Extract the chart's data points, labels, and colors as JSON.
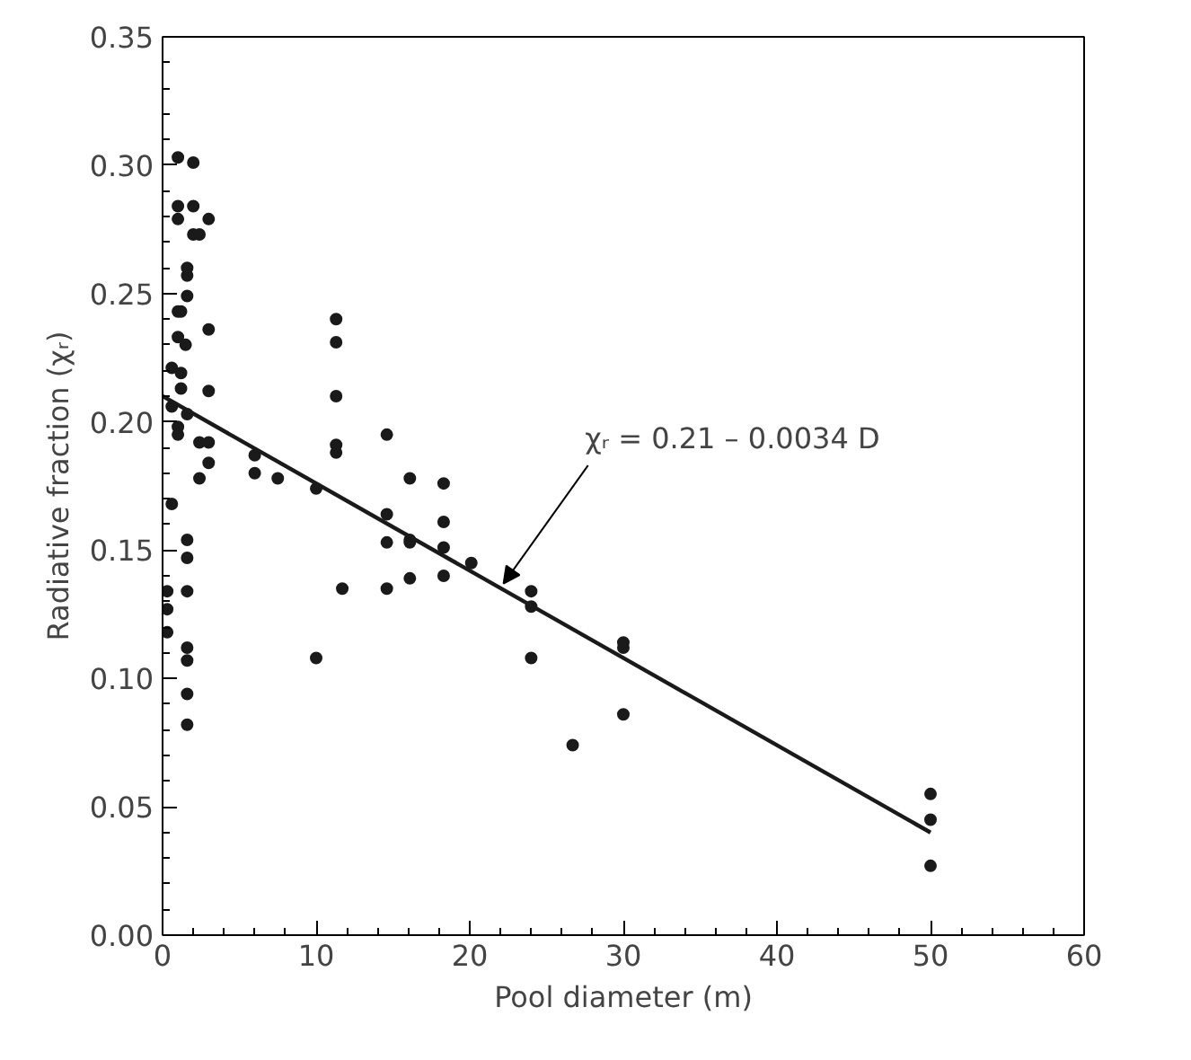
{
  "chart_data": {
    "type": "scatter",
    "xlabel": "Pool diameter (m)",
    "ylabel": "Radiative fraction (χᵣ)",
    "xlim": [
      0,
      60
    ],
    "ylim": [
      0,
      0.35
    ],
    "xticks": [
      0,
      10,
      20,
      30,
      40,
      50,
      60
    ],
    "yticks": [
      {
        "value": 0,
        "label": "0.00"
      },
      0.05,
      {
        "value": 0.1,
        "label": "0.10"
      },
      0.15,
      {
        "value": 0.2,
        "label": "0.20"
      },
      0.25,
      {
        "value": 0.3,
        "label": "0.30"
      },
      0.35
    ],
    "grid": false,
    "marker": "circle",
    "series": [
      {
        "color": "#1a1a1a",
        "x": [
          1.0,
          2.0,
          1.0,
          2.0,
          1.0,
          3.0,
          2.0,
          2.4,
          1.6,
          1.6,
          1.6,
          1.0,
          1.2,
          3.0,
          1.0,
          1.5,
          0.6,
          1.2,
          1.2,
          3.0,
          0.6,
          1.6,
          1.0,
          1.0,
          2.4,
          3.0,
          3.0,
          2.4,
          0.6,
          1.6,
          1.6,
          0.3,
          1.6,
          0.3,
          0.3,
          1.6,
          1.6,
          1.6,
          1.6,
          6.0,
          6.0,
          7.5,
          10.0,
          10.0,
          11.3,
          11.3,
          11.3,
          11.3,
          11.3,
          11.7,
          14.6,
          14.6,
          14.6,
          14.6,
          16.1,
          16.1,
          16.1,
          16.1,
          18.3,
          18.3,
          18.3,
          18.3,
          20.1,
          24.0,
          24.0,
          24.0,
          26.7,
          30.0,
          30.0,
          30.0,
          50.0,
          50.0,
          50.0
        ],
        "values": [
          0.303,
          0.301,
          0.284,
          0.284,
          0.279,
          0.279,
          0.273,
          0.273,
          0.26,
          0.257,
          0.249,
          0.243,
          0.243,
          0.236,
          0.233,
          0.23,
          0.221,
          0.219,
          0.213,
          0.212,
          0.206,
          0.203,
          0.198,
          0.195,
          0.192,
          0.192,
          0.184,
          0.178,
          0.168,
          0.154,
          0.147,
          0.134,
          0.134,
          0.127,
          0.118,
          0.112,
          0.107,
          0.094,
          0.082,
          0.187,
          0.18,
          0.178,
          0.174,
          0.108,
          0.24,
          0.231,
          0.21,
          0.191,
          0.188,
          0.135,
          0.195,
          0.164,
          0.153,
          0.135,
          0.178,
          0.154,
          0.153,
          0.139,
          0.176,
          0.161,
          0.151,
          0.14,
          0.145,
          0.134,
          0.128,
          0.108,
          0.074,
          0.114,
          0.112,
          0.086,
          0.055,
          0.045,
          0.027
        ]
      },
      {
        "type": "line",
        "marker": "none",
        "color": "#1a1a1a",
        "x": [
          0,
          50
        ],
        "values": [
          0.21,
          0.04
        ]
      }
    ],
    "annotations": [
      {
        "text": "χᵣ = 0.21 – 0.0034 D",
        "x": 22.2,
        "y": 0.137
      }
    ]
  }
}
